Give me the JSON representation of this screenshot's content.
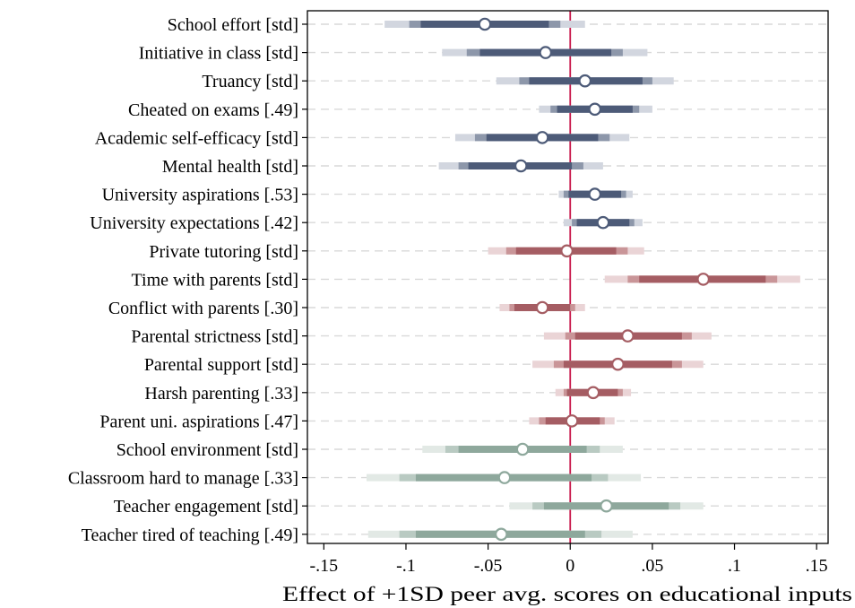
{
  "chart_data": {
    "type": "coefficient-plot",
    "xlabel": "Effect of +1SD peer avg. scores on educational inputs",
    "xlim": [
      -0.16,
      0.157
    ],
    "xticks": [
      -0.15,
      -0.1,
      -0.05,
      0,
      0.05,
      0.1,
      0.15
    ],
    "xtick_labels": [
      "-.15",
      "-.1",
      "-.05",
      "0",
      ".05",
      ".1",
      ".15"
    ],
    "reference_line": 0,
    "grid": "dashed horizontal",
    "group_colors": {
      "student": {
        "dark": "#4d5b78",
        "mid": "#8d97aa",
        "light": "#d2d6df"
      },
      "parent": {
        "dark": "#a55d63",
        "mid": "#c99598",
        "light": "#ead4d6"
      },
      "school": {
        "dark": "#8ea89c",
        "mid": "#b9cac2",
        "light": "#e2e9e5"
      }
    },
    "reference_color": "#c8194b",
    "rows": [
      {
        "label": "School effort [std]",
        "group": "student",
        "estimate": -0.052,
        "ci90": [
          -0.091,
          -0.013
        ],
        "ci95": [
          -0.098,
          -0.006
        ],
        "ci99": [
          -0.113,
          0.009
        ]
      },
      {
        "label": "Initiative in class [std]",
        "group": "student",
        "estimate": -0.015,
        "ci90": [
          -0.055,
          0.025
        ],
        "ci95": [
          -0.063,
          0.032
        ],
        "ci99": [
          -0.078,
          0.047
        ]
      },
      {
        "label": "Truancy [std]",
        "group": "student",
        "estimate": 0.009,
        "ci90": [
          -0.025,
          0.044
        ],
        "ci95": [
          -0.031,
          0.05
        ],
        "ci99": [
          -0.045,
          0.063
        ]
      },
      {
        "label": "Cheated on exams [.49]",
        "group": "student",
        "estimate": 0.015,
        "ci90": [
          -0.008,
          0.038
        ],
        "ci95": [
          -0.012,
          0.042
        ],
        "ci99": [
          -0.019,
          0.05
        ]
      },
      {
        "label": "Academic self-efficacy [std]",
        "group": "student",
        "estimate": -0.017,
        "ci90": [
          -0.051,
          0.017
        ],
        "ci95": [
          -0.058,
          0.024
        ],
        "ci99": [
          -0.07,
          0.036
        ]
      },
      {
        "label": "Mental health [std]",
        "group": "student",
        "estimate": -0.03,
        "ci90": [
          -0.062,
          0.001
        ],
        "ci95": [
          -0.068,
          0.008
        ],
        "ci99": [
          -0.08,
          0.02
        ]
      },
      {
        "label": "University aspirations [.53]",
        "group": "student",
        "estimate": 0.015,
        "ci90": [
          -0.001,
          0.031
        ],
        "ci95": [
          -0.004,
          0.034
        ],
        "ci99": [
          -0.007,
          0.038
        ]
      },
      {
        "label": "University expectations [.42]",
        "group": "student",
        "estimate": 0.02,
        "ci90": [
          0.004,
          0.036
        ],
        "ci95": [
          0.001,
          0.039
        ],
        "ci99": [
          -0.004,
          0.044
        ]
      },
      {
        "label": "Private tutoring [std]",
        "group": "parent",
        "estimate": -0.002,
        "ci90": [
          -0.033,
          0.028
        ],
        "ci95": [
          -0.039,
          0.035
        ],
        "ci99": [
          -0.05,
          0.045
        ]
      },
      {
        "label": "Time with parents [std]",
        "group": "parent",
        "estimate": 0.081,
        "ci90": [
          0.042,
          0.119
        ],
        "ci95": [
          0.035,
          0.126
        ],
        "ci99": [
          0.021,
          0.14
        ]
      },
      {
        "label": "Conflict with parents [.30]",
        "group": "parent",
        "estimate": -0.017,
        "ci90": [
          -0.034,
          0.0
        ],
        "ci95": [
          -0.037,
          0.003
        ],
        "ci99": [
          -0.043,
          0.009
        ]
      },
      {
        "label": "Parental strictness [std]",
        "group": "parent",
        "estimate": 0.035,
        "ci90": [
          0.003,
          0.068
        ],
        "ci95": [
          -0.003,
          0.074
        ],
        "ci99": [
          -0.016,
          0.086
        ]
      },
      {
        "label": "Parental support [std]",
        "group": "parent",
        "estimate": 0.029,
        "ci90": [
          -0.004,
          0.062
        ],
        "ci95": [
          -0.01,
          0.068
        ],
        "ci99": [
          -0.023,
          0.081
        ]
      },
      {
        "label": "Harsh parenting [.33]",
        "group": "parent",
        "estimate": 0.014,
        "ci90": [
          -0.002,
          0.029
        ],
        "ci95": [
          -0.004,
          0.032
        ],
        "ci99": [
          -0.009,
          0.037
        ]
      },
      {
        "label": "Parent uni. aspirations [.47]",
        "group": "parent",
        "estimate": 0.001,
        "ci90": [
          -0.015,
          0.018
        ],
        "ci95": [
          -0.019,
          0.021
        ],
        "ci99": [
          -0.025,
          0.027
        ]
      },
      {
        "label": "School environment [std]",
        "group": "school",
        "estimate": -0.029,
        "ci90": [
          -0.068,
          0.01
        ],
        "ci95": [
          -0.076,
          0.018
        ],
        "ci99": [
          -0.09,
          0.032
        ]
      },
      {
        "label": "Classroom hard to manage [.33]",
        "group": "school",
        "estimate": -0.04,
        "ci90": [
          -0.094,
          0.013
        ],
        "ci95": [
          -0.104,
          0.023
        ],
        "ci99": [
          -0.124,
          0.043
        ]
      },
      {
        "label": "Teacher engagement [std]",
        "group": "school",
        "estimate": 0.022,
        "ci90": [
          -0.016,
          0.06
        ],
        "ci95": [
          -0.023,
          0.067
        ],
        "ci99": [
          -0.037,
          0.081
        ]
      },
      {
        "label": "Teacher tired of teaching [.49]",
        "group": "school",
        "estimate": -0.042,
        "ci90": [
          -0.094,
          0.009
        ],
        "ci95": [
          -0.104,
          0.019
        ],
        "ci99": [
          -0.123,
          0.038
        ]
      }
    ]
  }
}
